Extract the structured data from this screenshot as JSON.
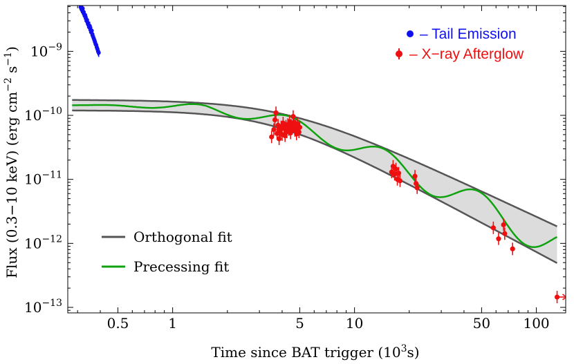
{
  "chart_data": {
    "type": "scatter",
    "x_scale": "log",
    "y_scale": "log",
    "xlabel_main": "Time since BAT trigger (10",
    "xlabel_sup": "3",
    "xlabel_end": "s)",
    "ylabel_main": "Flux (0.3−10 keV) (erg cm",
    "ylabel_sup1": "−2",
    "ylabel_mid": " s",
    "ylabel_sup2": "−1",
    "ylabel_end": ")",
    "xlim": [
      0.265,
      145
    ],
    "ylim": [
      8.2e-14,
      5.2e-09
    ],
    "x_ticks": [
      {
        "value": 0.5,
        "label": "0.5"
      },
      {
        "value": 1,
        "label": "1"
      },
      {
        "value": 5,
        "label": "5"
      },
      {
        "value": 10,
        "label": "10"
      },
      {
        "value": 50,
        "label": "50"
      },
      {
        "value": 100,
        "label": "100"
      }
    ],
    "y_ticks": [
      {
        "value": 1e-09,
        "base": "10",
        "exp": "−9"
      },
      {
        "value": 1e-10,
        "base": "10",
        "exp": "−10"
      },
      {
        "value": 1e-11,
        "base": "10",
        "exp": "−11"
      },
      {
        "value": 1e-12,
        "base": "10",
        "exp": "−12"
      },
      {
        "value": 1e-13,
        "base": "10",
        "exp": "−13"
      }
    ],
    "series": [
      {
        "name": "Tail Emission",
        "legend_label": "– Tail Emission",
        "color": "#1010ee",
        "type": "scatter",
        "points": [
          [
            0.31,
            5.4e-09
          ],
          [
            0.312,
            4.9e-09
          ],
          [
            0.315,
            4.6e-09
          ],
          [
            0.318,
            4.4e-09
          ],
          [
            0.32,
            4.7e-09
          ],
          [
            0.322,
            4.2e-09
          ],
          [
            0.325,
            3.9e-09
          ],
          [
            0.328,
            3.6e-09
          ],
          [
            0.33,
            3.7e-09
          ],
          [
            0.333,
            3.3e-09
          ],
          [
            0.336,
            3e-09
          ],
          [
            0.338,
            3.1e-09
          ],
          [
            0.341,
            2.8e-09
          ],
          [
            0.344,
            2.6e-09
          ],
          [
            0.347,
            2.4e-09
          ],
          [
            0.35,
            2.5e-09
          ],
          [
            0.353,
            2.2e-09
          ],
          [
            0.356,
            2e-09
          ],
          [
            0.359,
            2.1e-09
          ],
          [
            0.362,
            1.85e-09
          ],
          [
            0.365,
            1.7e-09
          ],
          [
            0.368,
            1.6e-09
          ],
          [
            0.371,
            1.5e-09
          ],
          [
            0.374,
            1.4e-09
          ],
          [
            0.377,
            1.3e-09
          ],
          [
            0.38,
            1.25e-09
          ],
          [
            0.383,
            1.15e-09
          ],
          [
            0.386,
            1.08e-09
          ],
          [
            0.389,
            1e-09
          ],
          [
            0.392,
            9.5e-10
          ]
        ]
      },
      {
        "name": "X-ray Afterglow",
        "legend_label": "– X−ray Afterglow",
        "color": "#ee1010",
        "type": "scatter",
        "points": [
          [
            3.5,
            4.6e-11
          ],
          [
            3.6,
            6e-11
          ],
          [
            3.65,
            8.5e-11
          ],
          [
            3.7,
            1.1e-10
          ],
          [
            3.75,
            5.2e-11
          ],
          [
            3.8,
            7e-11
          ],
          [
            3.85,
            4.3e-11
          ],
          [
            3.9,
            5.8e-11
          ],
          [
            3.95,
            6.6e-11
          ],
          [
            4.0,
            5e-11
          ],
          [
            4.05,
            7.6e-11
          ],
          [
            4.1,
            6.2e-11
          ],
          [
            4.15,
            4.8e-11
          ],
          [
            4.2,
            6.8e-11
          ],
          [
            4.25,
            5.5e-11
          ],
          [
            4.3,
            7.2e-11
          ],
          [
            4.35,
            6e-11
          ],
          [
            4.4,
            8e-11
          ],
          [
            4.45,
            5.3e-11
          ],
          [
            4.5,
            7e-11
          ],
          [
            4.55,
            6.3e-11
          ],
          [
            4.6,
            9.6e-11
          ],
          [
            4.65,
            7.8e-11
          ],
          [
            4.7,
            5.8e-11
          ],
          [
            4.75,
            6.9e-11
          ],
          [
            4.8,
            5.1e-11
          ],
          [
            4.85,
            7.4e-11
          ],
          [
            4.9,
            6.2e-11
          ],
          [
            4.95,
            5.5e-11
          ],
          [
            5.0,
            6.5e-11
          ],
          [
            16.0,
            1.3e-11
          ],
          [
            16.3,
            1.6e-11
          ],
          [
            16.6,
            1.2e-11
          ],
          [
            16.9,
            1.45e-11
          ],
          [
            17.2,
            1e-11
          ],
          [
            17.5,
            1.25e-11
          ],
          [
            17.8,
            9.5e-12
          ],
          [
            21.5,
            1.12e-11
          ],
          [
            21.8,
            8.6e-12
          ],
          [
            22.1,
            7.4e-12
          ],
          [
            58,
            1.75e-12
          ],
          [
            62,
            1.18e-12
          ],
          [
            66,
            1.95e-12
          ],
          [
            67,
            1.42e-12
          ],
          [
            74,
            8.2e-13
          ],
          [
            130,
            1.45e-13
          ]
        ]
      }
    ],
    "model_fits": [
      {
        "name": "Orthogonal fit",
        "legend_label": "Orthogonal fit",
        "color": "#555555"
      },
      {
        "name": "Precessing fit",
        "legend_label": "Precessing fit",
        "color": "#0ea30e"
      }
    ],
    "shaded_band": {
      "color": "#dcdcdc"
    },
    "last_point_upper_limit_arrow": true
  }
}
